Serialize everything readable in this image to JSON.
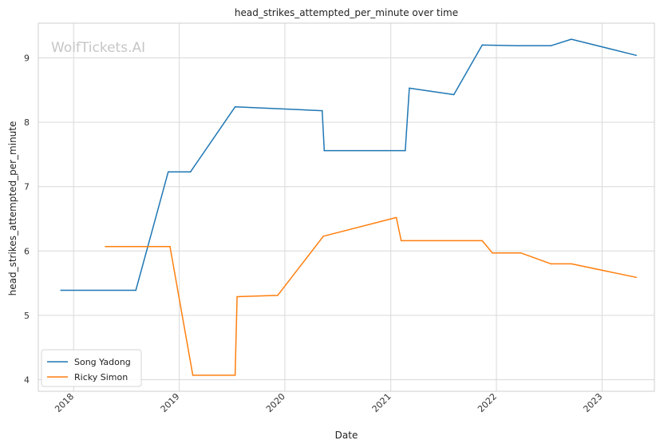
{
  "chart_data": {
    "type": "line",
    "title": "head_strikes_attempted_per_minute over time",
    "xlabel": "Date",
    "ylabel": "head_strikes_attempted_per_minute",
    "x_type": "date",
    "xlim": [
      "2017-09-01",
      "2023-07-01"
    ],
    "ylim": [
      3.82,
      9.54
    ],
    "x_ticks": [
      "2018-01-01",
      "2019-01-01",
      "2020-01-01",
      "2021-01-01",
      "2022-01-01",
      "2023-01-01"
    ],
    "x_tick_labels": [
      "2018",
      "2019",
      "2020",
      "2021",
      "2022",
      "2023"
    ],
    "y_ticks": [
      4,
      5,
      6,
      7,
      8,
      9
    ],
    "y_tick_labels": [
      "4",
      "5",
      "6",
      "7",
      "8",
      "9"
    ],
    "grid": true,
    "legend_position": "lower-left",
    "watermark": "WolfTickets.AI",
    "series": [
      {
        "name": "Song Yadong",
        "color": "#1f77b4",
        "points": [
          {
            "x": "2017-11-18",
            "y": 5.39
          },
          {
            "x": "2018-08-04",
            "y": 5.39
          },
          {
            "x": "2018-11-24",
            "y": 7.23
          },
          {
            "x": "2019-02-09",
            "y": 7.23
          },
          {
            "x": "2019-07-13",
            "y": 8.24
          },
          {
            "x": "2020-05-09",
            "y": 8.18
          },
          {
            "x": "2020-05-16",
            "y": 7.56
          },
          {
            "x": "2021-02-20",
            "y": 7.56
          },
          {
            "x": "2021-03-06",
            "y": 8.53
          },
          {
            "x": "2021-08-07",
            "y": 8.43
          },
          {
            "x": "2021-11-13",
            "y": 9.2
          },
          {
            "x": "2022-03-12",
            "y": 9.19
          },
          {
            "x": "2022-07-09",
            "y": 9.19
          },
          {
            "x": "2022-09-17",
            "y": 9.29
          },
          {
            "x": "2023-04-29",
            "y": 9.04
          }
        ]
      },
      {
        "name": "Ricky Simon",
        "color": "#ff7f0e",
        "points": [
          {
            "x": "2018-04-21",
            "y": 6.07
          },
          {
            "x": "2018-11-30",
            "y": 6.07
          },
          {
            "x": "2019-02-17",
            "y": 4.07
          },
          {
            "x": "2019-07-13",
            "y": 4.07
          },
          {
            "x": "2019-07-20",
            "y": 5.29
          },
          {
            "x": "2019-12-07",
            "y": 5.31
          },
          {
            "x": "2020-05-13",
            "y": 6.23
          },
          {
            "x": "2021-01-20",
            "y": 6.52
          },
          {
            "x": "2021-02-06",
            "y": 6.16
          },
          {
            "x": "2021-11-13",
            "y": 6.16
          },
          {
            "x": "2021-12-18",
            "y": 5.97
          },
          {
            "x": "2022-03-26",
            "y": 5.97
          },
          {
            "x": "2022-07-09",
            "y": 5.8
          },
          {
            "x": "2022-09-17",
            "y": 5.8
          },
          {
            "x": "2023-04-29",
            "y": 5.59
          }
        ]
      }
    ]
  }
}
